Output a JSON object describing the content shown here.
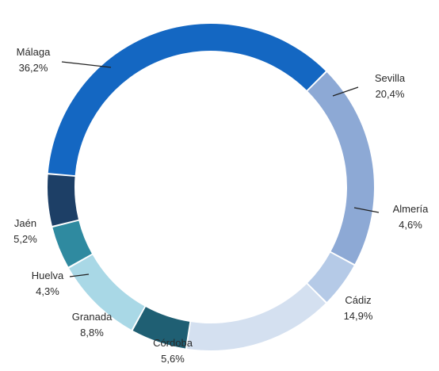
{
  "chart_data": {
    "type": "pie",
    "variant": "donut",
    "start_category": "Málaga",
    "direction": "clockwise",
    "slices": [
      {
        "label": "Sevilla",
        "value_label": "20,4%",
        "value": 20.4,
        "color": "#8da9d5"
      },
      {
        "label": "Almería",
        "value_label": "4,6%",
        "value": 4.6,
        "color": "#b5cae7"
      },
      {
        "label": "Cádiz",
        "value_label": "14,9%",
        "value": 14.9,
        "color": "#d4e0f0"
      },
      {
        "label": "Córdoba",
        "value_label": "5,6%",
        "value": 5.6,
        "color": "#1f5f73"
      },
      {
        "label": "Granada",
        "value_label": "8,8%",
        "value": 8.8,
        "color": "#a9d8e6"
      },
      {
        "label": "Huelva",
        "value_label": "4,3%",
        "value": 4.3,
        "color": "#2f8aa0"
      },
      {
        "label": "Jaén",
        "value_label": "5,2%",
        "value": 5.2,
        "color": "#1d3f66"
      },
      {
        "label": "Málaga",
        "value_label": "36,2%",
        "value": 36.2,
        "color": "#1467c2"
      }
    ]
  }
}
